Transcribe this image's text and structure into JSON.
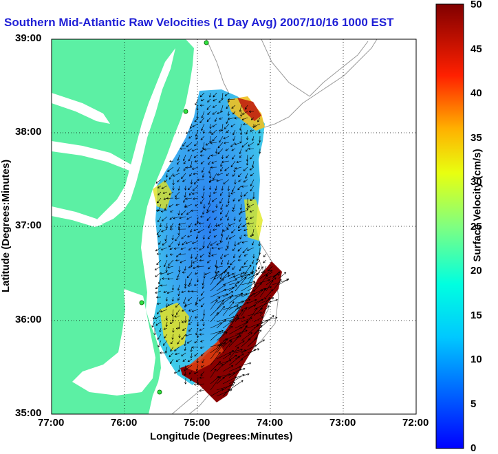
{
  "title": "Southern Mid-Atlantic Raw Velocities (1 Day Avg) 2007/10/16 1000 EST",
  "xlabel": "Longitude (Degrees:Minutes)",
  "ylabel": "Latitude (Degrees:Minutes)",
  "xticks": [
    "77:00",
    "76:00",
    "75:00",
    "74:00",
    "73:00",
    "72:00"
  ],
  "yticks": [
    "39:00",
    "38:00",
    "37:00",
    "36:00",
    "35:00"
  ],
  "colorbar": {
    "label": "Surface Velocity (cm/s)",
    "ticks": [
      "0",
      "5",
      "10",
      "15",
      "20",
      "25",
      "30",
      "35",
      "40",
      "45",
      "50"
    ],
    "range": [
      0,
      50
    ]
  },
  "colors": {
    "land": "#5cf0a4",
    "title": "#1f1fd6",
    "ocean": "#ffffff"
  },
  "map_extent": {
    "lon": [
      -77,
      -72
    ],
    "lat": [
      35,
      39
    ]
  }
}
